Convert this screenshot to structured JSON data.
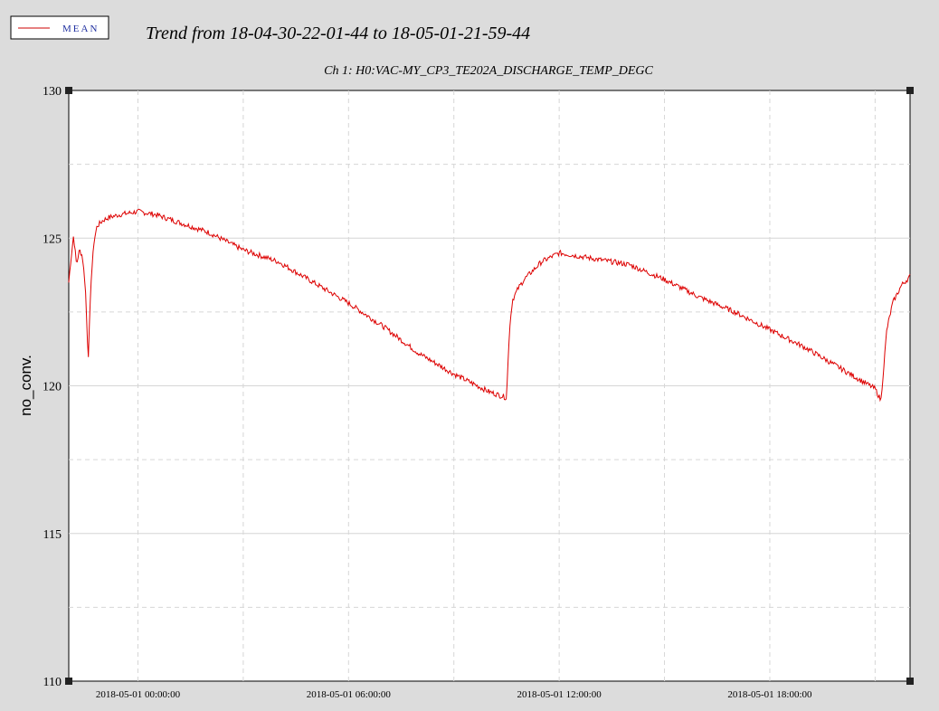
{
  "legend": {
    "label": "MEAN",
    "line_color": "#cc0000",
    "text_color": "#2030a0"
  },
  "title": "Trend from 18-04-30-22-01-44 to 18-05-01-21-59-44",
  "colors": {
    "background": "#dcdcdc",
    "plot_bg": "#ffffff",
    "series": "#dd0000",
    "grid": "#d0d0d0"
  },
  "chart_data": {
    "type": "line",
    "title": "Ch 1: H0:VAC-MY_CP3_TE202A_DISCHARGE_TEMP_DEGC",
    "ylabel": "no_conv.",
    "xlabel": "",
    "ylim": [
      110,
      130
    ],
    "xlim": [
      "2018-04-30 22:01:44",
      "2018-05-01 21:59:44"
    ],
    "yticks": [
      110,
      115,
      120,
      125,
      130
    ],
    "xticks": [
      "2018-05-01 00:00:00",
      "2018-05-01 06:00:00",
      "2018-05-01 12:00:00",
      "2018-05-01 18:00:00"
    ],
    "grid": true,
    "series": [
      {
        "name": "MEAN",
        "x": [
          "2018-04-30 22:01:44",
          "2018-04-30 22:05:00",
          "2018-04-30 22:10:00",
          "2018-04-30 22:15:00",
          "2018-04-30 22:20:00",
          "2018-04-30 22:25:00",
          "2018-04-30 22:30:00",
          "2018-04-30 22:35:00",
          "2018-04-30 22:40:00",
          "2018-04-30 22:45:00",
          "2018-04-30 22:50:00",
          "2018-04-30 23:00:00",
          "2018-04-30 23:10:00",
          "2018-04-30 23:30:00",
          "2018-05-01 00:00:00",
          "2018-05-01 00:30:00",
          "2018-05-01 01:00:00",
          "2018-05-01 02:00:00",
          "2018-05-01 03:00:00",
          "2018-05-01 04:00:00",
          "2018-05-01 05:00:00",
          "2018-05-01 06:00:00",
          "2018-05-01 07:00:00",
          "2018-05-01 08:00:00",
          "2018-05-01 09:00:00",
          "2018-05-01 10:00:00",
          "2018-05-01 10:30:00",
          "2018-05-01 10:35:00",
          "2018-05-01 10:40:00",
          "2018-05-01 10:50:00",
          "2018-05-01 11:00:00",
          "2018-05-01 11:30:00",
          "2018-05-01 12:00:00",
          "2018-05-01 13:00:00",
          "2018-05-01 14:00:00",
          "2018-05-01 15:00:00",
          "2018-05-01 16:00:00",
          "2018-05-01 17:00:00",
          "2018-05-01 18:00:00",
          "2018-05-01 19:00:00",
          "2018-05-01 20:00:00",
          "2018-05-01 21:00:00",
          "2018-05-01 21:05:00",
          "2018-05-01 21:10:00",
          "2018-05-01 21:20:00",
          "2018-05-01 21:30:00",
          "2018-05-01 21:45:00",
          "2018-05-01 21:59:44"
        ],
        "y": [
          123.5,
          124.2,
          125.1,
          124.1,
          124.6,
          124.4,
          123.4,
          120.9,
          123.6,
          124.9,
          125.4,
          125.6,
          125.7,
          125.8,
          125.9,
          125.8,
          125.6,
          125.2,
          124.6,
          124.2,
          123.5,
          122.8,
          122.0,
          121.1,
          120.4,
          119.8,
          119.6,
          121.9,
          122.9,
          123.3,
          123.6,
          124.2,
          124.5,
          124.3,
          124.1,
          123.6,
          123.0,
          122.5,
          121.9,
          121.3,
          120.6,
          119.9,
          119.7,
          119.5,
          121.9,
          122.8,
          123.4,
          123.7
        ]
      }
    ]
  }
}
